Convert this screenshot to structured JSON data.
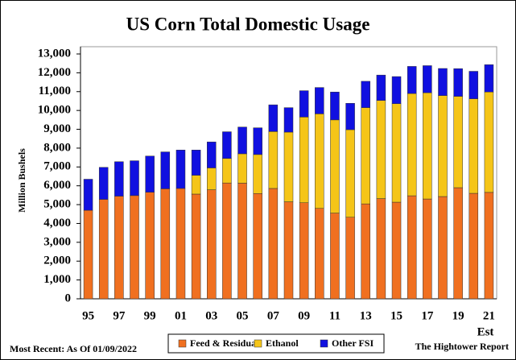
{
  "chart_data": {
    "type": "stacked-bar",
    "title": "US Corn Total Domestic Usage",
    "y_label": "Million Bushels",
    "annotation": "Est",
    "footer_left": "Most Recent: As Of 01/09/2022",
    "footer_right": "The Hightower Report",
    "categories": [
      "95",
      null,
      "97",
      null,
      "99",
      null,
      "01",
      null,
      "03",
      null,
      "05",
      null,
      "07",
      null,
      "09",
      null,
      "11",
      null,
      "13",
      null,
      "15",
      null,
      "17",
      null,
      "19",
      null,
      "21"
    ],
    "series": [
      {
        "name": "Feed & Residual",
        "color": "#f07020",
        "values": [
          4700,
          5280,
          5450,
          5480,
          5660,
          5840,
          5860,
          5560,
          5790,
          6150,
          6140,
          5590,
          5860,
          5150,
          5100,
          4800,
          4550,
          4330,
          5040,
          5320,
          5130,
          5470,
          5300,
          5430,
          5900,
          5600,
          5650
        ]
      },
      {
        "name": "Ethanol",
        "color": "#f5c518",
        "values": [
          0,
          0,
          0,
          0,
          0,
          0,
          0,
          1000,
          1160,
          1300,
          1560,
          2070,
          3020,
          3700,
          4550,
          5020,
          4950,
          4650,
          5110,
          5210,
          5230,
          5430,
          5640,
          5360,
          4850,
          5020,
          5330
        ]
      },
      {
        "name": "Other FSI",
        "color": "#1010e0",
        "values": [
          1650,
          1700,
          1830,
          1850,
          1920,
          1960,
          2040,
          1340,
          1380,
          1420,
          1420,
          1420,
          1420,
          1300,
          1400,
          1400,
          1480,
          1400,
          1400,
          1350,
          1440,
          1440,
          1440,
          1440,
          1470,
          1460,
          1450
        ]
      }
    ],
    "ylim": [
      0,
      13000
    ],
    "yticks": [
      0,
      {
        "value": 1000,
        "label": "1,000"
      },
      {
        "value": 2000,
        "label": "2,000"
      },
      {
        "value": 3000,
        "label": "3,000"
      },
      {
        "value": 4000,
        "label": "4,000"
      },
      {
        "value": 5000,
        "label": "5,000"
      },
      {
        "value": 6000,
        "label": "6,000"
      },
      {
        "value": 7000,
        "label": "7,000"
      },
      {
        "value": 8000,
        "label": "8,000"
      },
      {
        "value": 9000,
        "label": "9,000"
      },
      {
        "value": 10000,
        "label": "10,000"
      },
      {
        "value": 11000,
        "label": "11,000"
      },
      {
        "value": 12000,
        "label": "12,000"
      },
      {
        "value": 13000,
        "label": "13,000"
      }
    ],
    "grid": false
  }
}
